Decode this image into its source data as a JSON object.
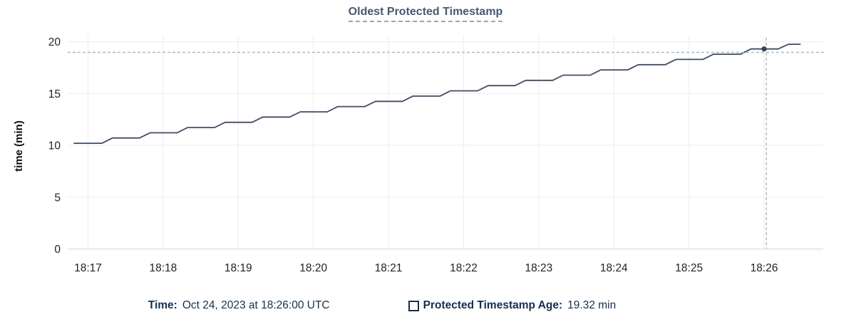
{
  "title": "Oldest Protected Timestamp",
  "chart_data": {
    "type": "line",
    "title": "Oldest Protected Timestamp",
    "xlabel": "",
    "ylabel": "time (min)",
    "ylim": [
      0,
      20
    ],
    "y_ticks": [
      0,
      5,
      10,
      15,
      20
    ],
    "x_ticks": [
      "18:17",
      "18:18",
      "18:19",
      "18:20",
      "18:21",
      "18:22",
      "18:23",
      "18:24",
      "18:25",
      "18:26"
    ],
    "x_unit": "minutes after 18:17",
    "grid": true,
    "legend_position": "bottom",
    "series": [
      {
        "name": "Protected Timestamp Age",
        "points": [
          [
            -0.185,
            10.2
          ],
          [
            0.185,
            10.2
          ],
          [
            0.325,
            10.71
          ],
          [
            0.685,
            10.71
          ],
          [
            0.825,
            11.21
          ],
          [
            1.185,
            11.21
          ],
          [
            1.325,
            11.72
          ],
          [
            1.685,
            11.72
          ],
          [
            1.825,
            12.22
          ],
          [
            2.185,
            12.22
          ],
          [
            2.325,
            12.73
          ],
          [
            2.685,
            12.73
          ],
          [
            2.825,
            13.23
          ],
          [
            3.185,
            13.23
          ],
          [
            3.325,
            13.74
          ],
          [
            3.685,
            13.74
          ],
          [
            3.825,
            14.24
          ],
          [
            4.185,
            14.24
          ],
          [
            4.325,
            14.75
          ],
          [
            4.685,
            14.75
          ],
          [
            4.825,
            15.26
          ],
          [
            5.185,
            15.26
          ],
          [
            5.325,
            15.76
          ],
          [
            5.685,
            15.76
          ],
          [
            5.825,
            16.27
          ],
          [
            6.185,
            16.27
          ],
          [
            6.325,
            16.77
          ],
          [
            6.685,
            16.77
          ],
          [
            6.825,
            17.28
          ],
          [
            7.185,
            17.28
          ],
          [
            7.325,
            17.78
          ],
          [
            7.685,
            17.78
          ],
          [
            7.825,
            18.29
          ],
          [
            8.185,
            18.29
          ],
          [
            8.325,
            18.79
          ],
          [
            8.685,
            18.79
          ],
          [
            8.825,
            19.3
          ],
          [
            9.185,
            19.3
          ],
          [
            9.325,
            19.75
          ],
          [
            9.48,
            19.75
          ]
        ]
      }
    ],
    "hover": {
      "snap_point": [
        9.0,
        19.3
      ],
      "crosshair": [
        9.03,
        18.97
      ]
    }
  },
  "tooltip": {
    "time_label": "Time:",
    "time_value": "Oct 24, 2023 at 18:26:00 UTC",
    "series_label": "Protected Timestamp Age:",
    "series_value": "19.32 min"
  },
  "colors": {
    "line": "#3e4c63",
    "hover_dot": "#33415a",
    "crosshair": "#a8bcc8",
    "grid": "#efefef",
    "axis": "#e0e0e0",
    "tick_text": "#232323",
    "axis_title_text": "#111111",
    "title_text": "#475872",
    "legend_text": "#16304f"
  }
}
